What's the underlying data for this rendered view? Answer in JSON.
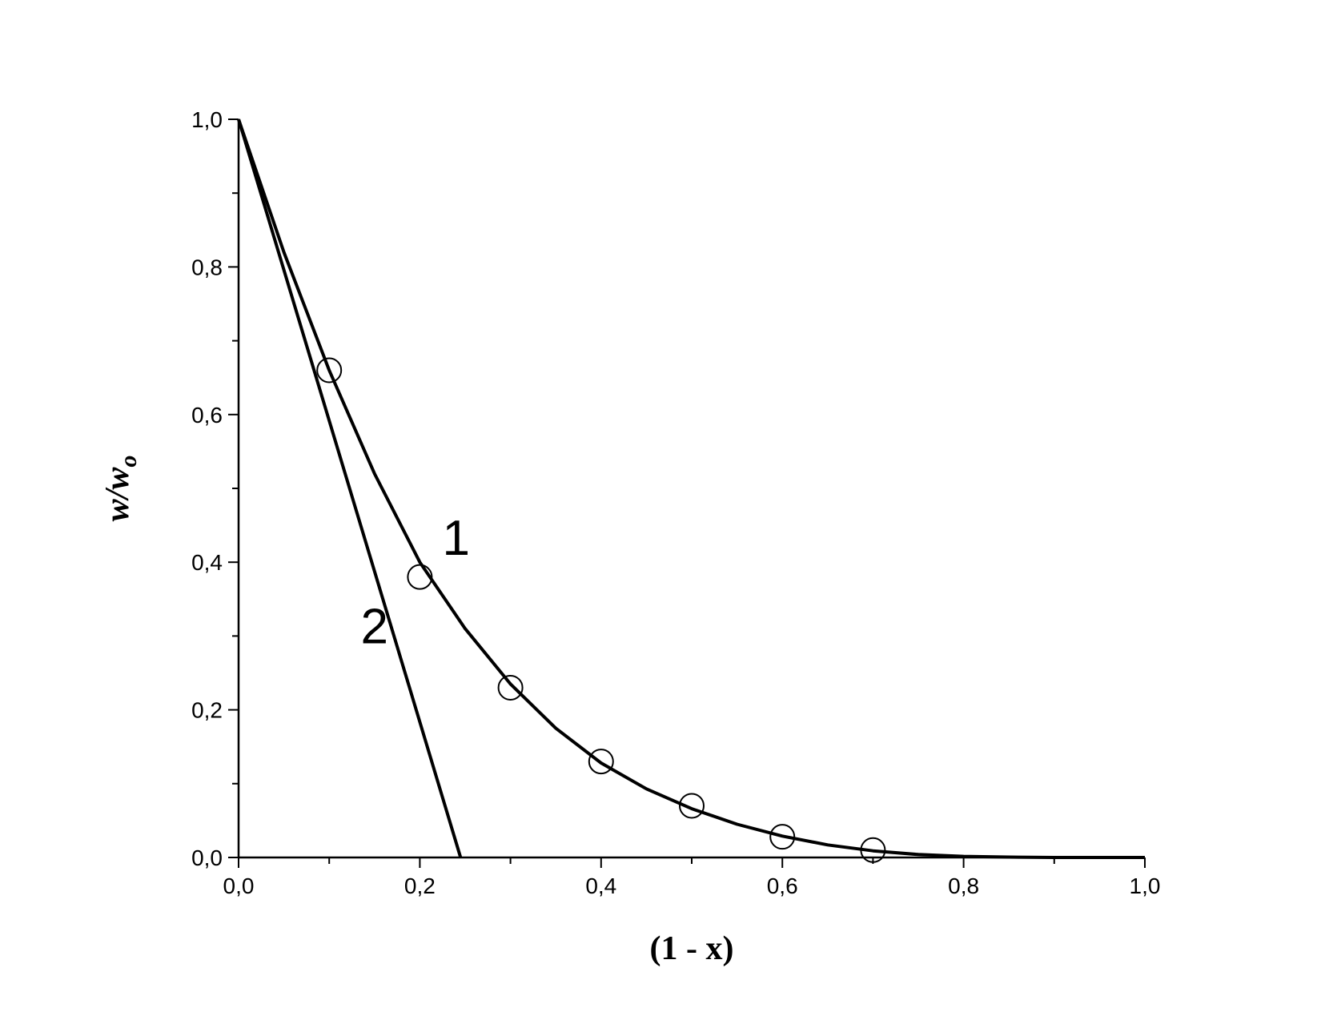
{
  "chart_data": {
    "type": "line",
    "x_label": "(1 - x)",
    "y_label": {
      "main": "w/w",
      "sub": "o"
    },
    "xlim": [
      0,
      1
    ],
    "ylim": [
      0,
      1
    ],
    "xticks": [
      {
        "value": 0,
        "label": "0,0"
      },
      {
        "value": 0.2,
        "label": "0,2"
      },
      {
        "value": 0.4,
        "label": "0,4"
      },
      {
        "value": 0.6,
        "label": "0,6"
      },
      {
        "value": 0.8,
        "label": "0,8"
      },
      {
        "value": 1,
        "label": "1,0"
      }
    ],
    "yticks": [
      {
        "value": 0,
        "label": "0,0"
      },
      {
        "value": 0.2,
        "label": "0,2"
      },
      {
        "value": 0.4,
        "label": "0,4"
      },
      {
        "value": 0.6,
        "label": "0,6"
      },
      {
        "value": 0.8,
        "label": "0,8"
      },
      {
        "value": 1,
        "label": "1,0"
      }
    ],
    "xminorticks": [
      0.1,
      0.3,
      0.5,
      0.7,
      0.9
    ],
    "yminorticks": [
      0.1,
      0.3,
      0.5,
      0.7,
      0.9
    ],
    "grid": false,
    "color": "#000000",
    "series": [
      {
        "name": "1",
        "kind": "line",
        "x": [
          0,
          0.05,
          0.1,
          0.15,
          0.2,
          0.25,
          0.3,
          0.35,
          0.4,
          0.45,
          0.5,
          0.55,
          0.6,
          0.65,
          0.7,
          0.75,
          0.8,
          0.85,
          0.9,
          0.95,
          1
        ],
        "values": [
          1,
          0.82,
          0.66,
          0.52,
          0.4,
          0.31,
          0.235,
          0.175,
          0.128,
          0.093,
          0.066,
          0.045,
          0.029,
          0.017,
          0.009,
          0.004,
          0.0015,
          0.0005,
          0,
          0,
          0
        ],
        "label_at": [
          0.24,
          0.41
        ]
      },
      {
        "name": "2",
        "kind": "line",
        "x": [
          0,
          0.245
        ],
        "values": [
          1,
          0
        ],
        "label_at": [
          0.15,
          0.29
        ]
      },
      {
        "kind": "scatter",
        "x": [
          0.1,
          0.2,
          0.3,
          0.4,
          0.5,
          0.6,
          0.7
        ],
        "values": [
          0.66,
          0.38,
          0.23,
          0.13,
          0.07,
          0.028,
          0.01
        ]
      }
    ]
  }
}
